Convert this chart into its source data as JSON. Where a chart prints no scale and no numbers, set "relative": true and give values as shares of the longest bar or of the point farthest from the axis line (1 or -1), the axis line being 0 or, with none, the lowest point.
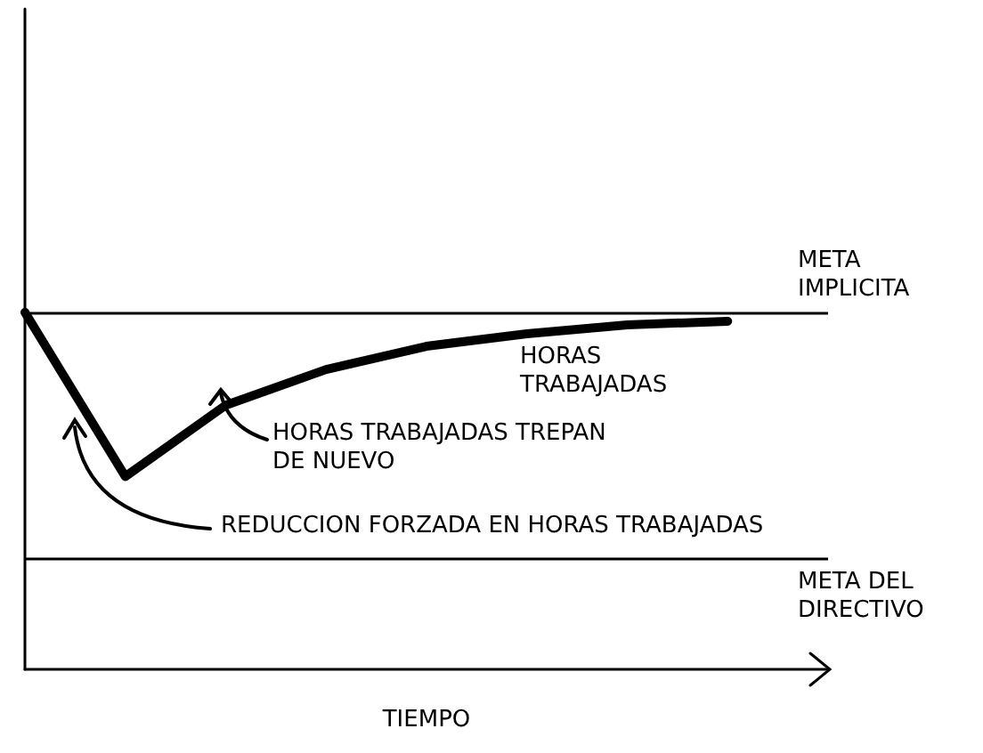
{
  "chart_data": {
    "type": "line",
    "relative": true,
    "xlabel": "TIEMPO",
    "categories": [
      null,
      null,
      null,
      null,
      null,
      null,
      null,
      null,
      null
    ],
    "series": [
      {
        "name": "HORAS TRABAJADAS",
        "color": "#000000",
        "values": [
          1,
          0.54,
          0.74,
          0.84,
          0.905,
          0.94,
          0.965,
          0.975,
          null
        ]
      }
    ],
    "ref_lines": [
      {
        "axis": "y",
        "value": 1,
        "label": "META IMPLICITA",
        "color": "#000000"
      },
      {
        "axis": "y",
        "value": 0.31,
        "label": "META DEL DIRECTIVO",
        "color": "#000000"
      }
    ],
    "annotations": [
      "HORAS TRABAJADAS TREPAN DE NUEVO",
      "REDUCCION FORZADA EN HORAS TRABAJADAS"
    ],
    "grid": false,
    "legend": false,
    "marker": "none",
    "line_style": "solid"
  }
}
